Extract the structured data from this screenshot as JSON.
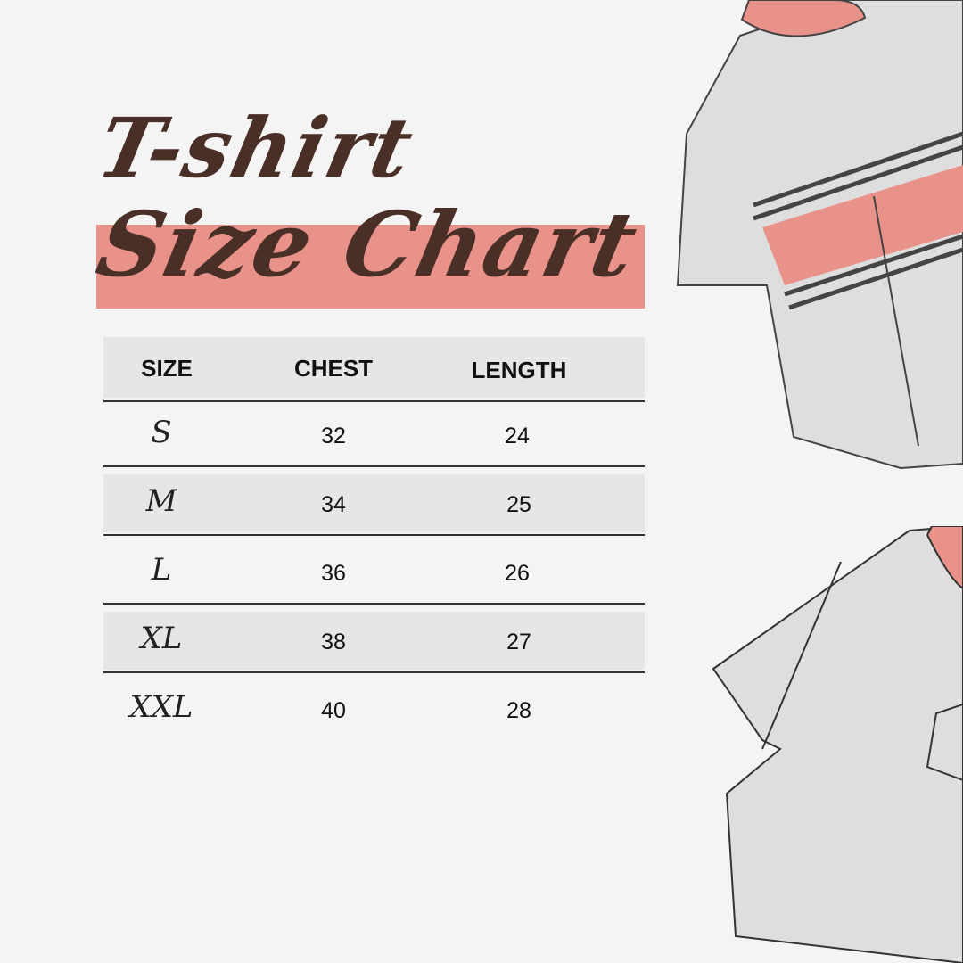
{
  "title": {
    "line1": "T-shirt",
    "line2": "Size Chart"
  },
  "colors": {
    "accent": "#e8928a",
    "title": "#4a2f26",
    "row_shade": "#e6e6e6"
  },
  "table": {
    "headers": [
      "SIZE",
      "CHEST",
      "LENGTH"
    ],
    "rows": [
      {
        "size": "S",
        "chest": "32",
        "length": "24"
      },
      {
        "size": "M",
        "chest": "34",
        "length": "25"
      },
      {
        "size": "L",
        "chest": "36",
        "length": "26"
      },
      {
        "size": "XL",
        "chest": "38",
        "length": "27"
      },
      {
        "size": "XXL",
        "chest": "40",
        "length": "28"
      }
    ]
  }
}
